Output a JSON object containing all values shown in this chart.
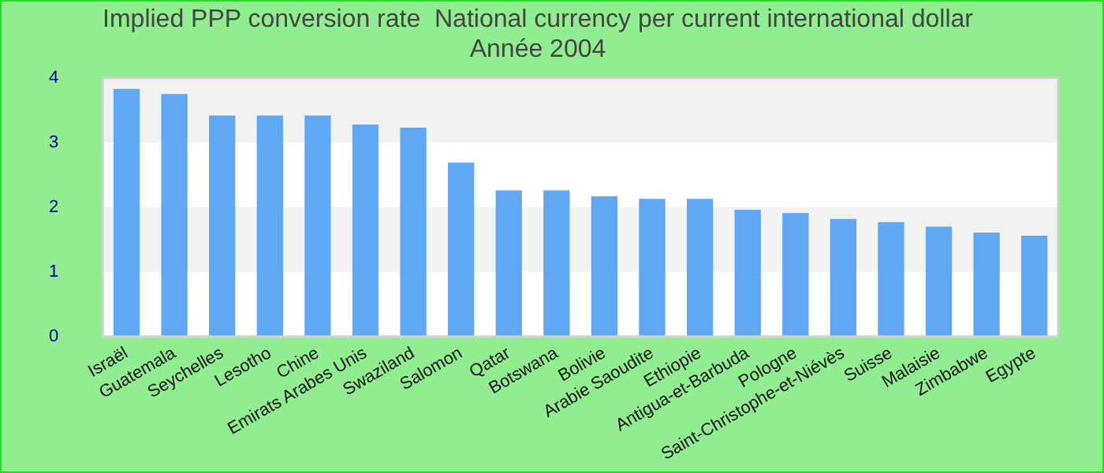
{
  "chart_data": {
    "type": "bar",
    "title": "Implied PPP conversion rate  National currency per current international dollar",
    "subtitle": "Année 2004",
    "categories": [
      "Israël",
      "Guatemala",
      "Seychelles",
      "Lesotho",
      "Chine",
      "Emirats Arabes Unis",
      "Swaziland",
      "Salomon",
      "Qatar",
      "Botswana",
      "Bolivie",
      "Arabie Saoudite",
      "Ethiopie",
      "Antigua-et-Barbuda",
      "Pologne",
      "Saint-Christophe-et-Niévès",
      "Suisse",
      "Malaisie",
      "Zimbabwe",
      "Egypte"
    ],
    "values": [
      3.83,
      3.75,
      3.42,
      3.42,
      3.42,
      3.28,
      3.23,
      2.69,
      2.26,
      2.26,
      2.17,
      2.13,
      2.13,
      1.96,
      1.91,
      1.82,
      1.77,
      1.7,
      1.61,
      1.56
    ],
    "color": "#60a8f4",
    "ylim": [
      0,
      4
    ],
    "yticks": [
      0,
      1,
      2,
      3,
      4
    ],
    "bands": [
      {
        "axis": "y",
        "from": 1,
        "to": 2,
        "color": "#f2f2f2"
      },
      {
        "axis": "y",
        "from": 3,
        "to": 4,
        "color": "#f2f2f2"
      }
    ]
  }
}
